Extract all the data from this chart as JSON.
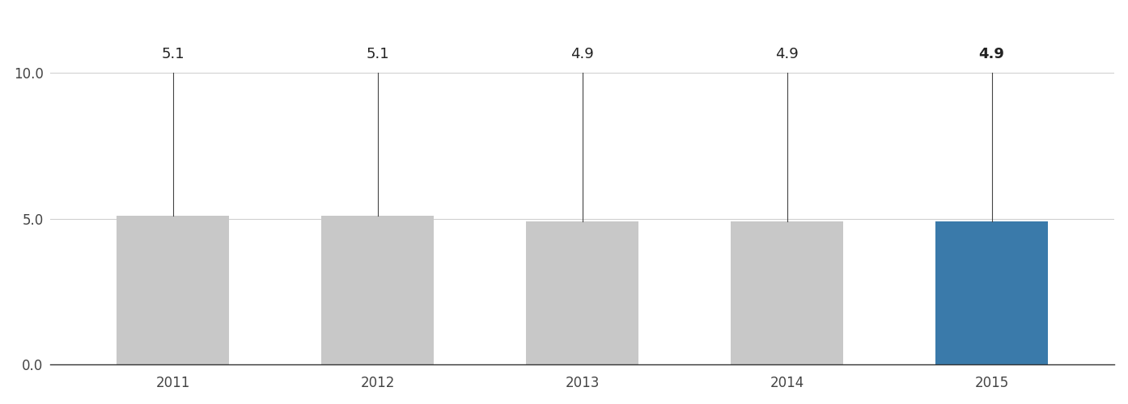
{
  "categories": [
    "2011",
    "2012",
    "2013",
    "2014",
    "2015"
  ],
  "values": [
    5.1,
    5.1,
    4.9,
    4.9,
    4.9
  ],
  "bar_colors": [
    "#c8c8c8",
    "#c8c8c8",
    "#c8c8c8",
    "#c8c8c8",
    "#3a7aaa"
  ],
  "label_fontweights": [
    "normal",
    "normal",
    "normal",
    "normal",
    "bold"
  ],
  "ylim": [
    0,
    10.0
  ],
  "yticks": [
    0.0,
    5.0,
    10.0
  ],
  "ytick_labels": [
    "0.0",
    "5.0",
    "10.0"
  ],
  "grid_color": "#d0d0d0",
  "spine_color": "#333333",
  "bar_width": 0.55,
  "value_label_fontsize": 13,
  "tick_fontsize": 12,
  "background_color": "#ffffff",
  "line_color": "#444444",
  "label_color": "#222222"
}
